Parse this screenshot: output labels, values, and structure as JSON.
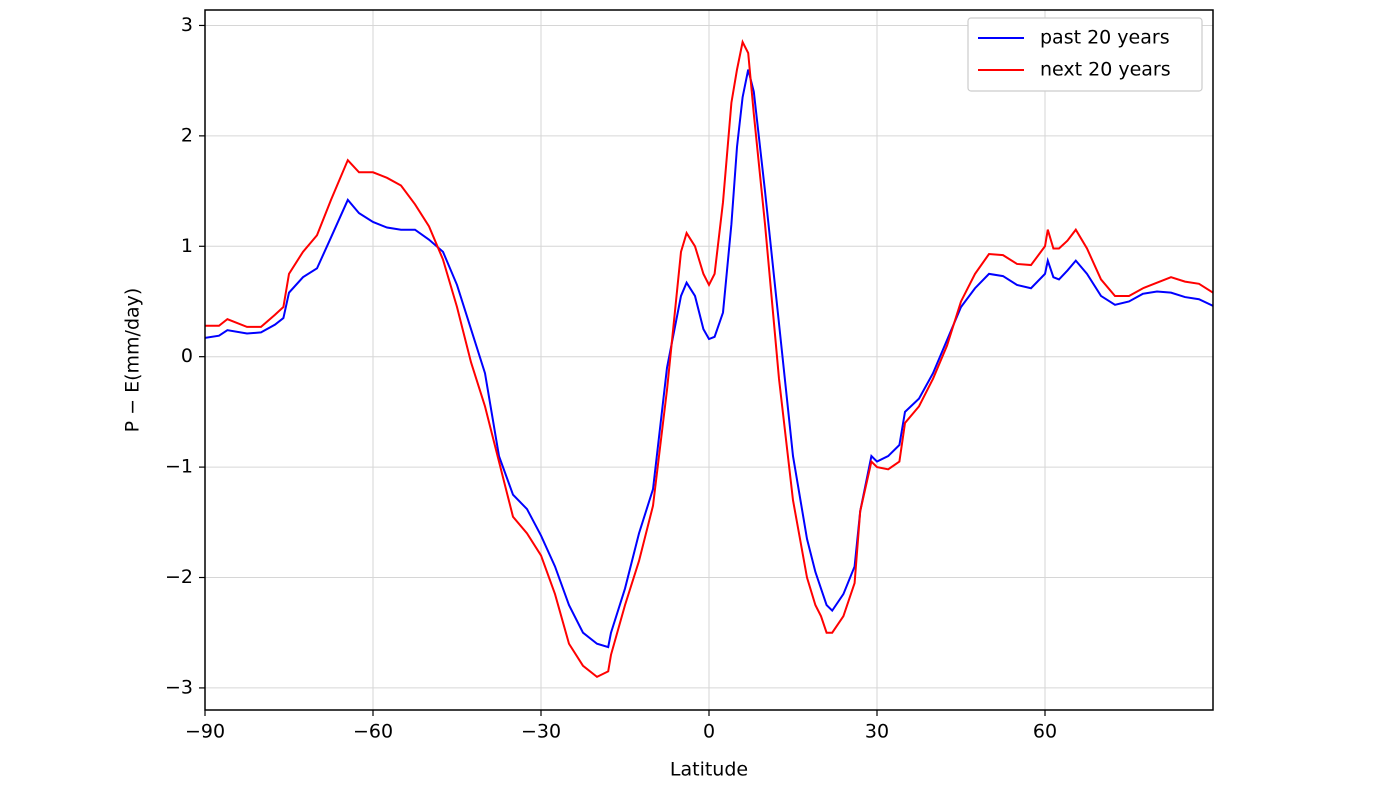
{
  "chart_data": {
    "type": "line",
    "x_label": "Latitude",
    "y_label": "P − E(mm/day)",
    "x": [
      -90,
      -87.5,
      -86,
      -82.5,
      -80,
      -77.5,
      -76,
      -75,
      -72.5,
      -70,
      -67.5,
      -64.5,
      -62.5,
      -60,
      -57.5,
      -55,
      -52.5,
      -50,
      -47.5,
      -45,
      -42.5,
      -40,
      -37.5,
      -35,
      -32.5,
      -30,
      -27.5,
      -25,
      -22.5,
      -20,
      -18,
      -17.5,
      -15,
      -12.5,
      -10,
      -7.5,
      -5,
      -4,
      -2.5,
      -1,
      0,
      1,
      2.5,
      4,
      5,
      6,
      7,
      8,
      10,
      12.5,
      15,
      17.5,
      19,
      20,
      21,
      22,
      24,
      26,
      27,
      29,
      30,
      32,
      34,
      35,
      37.5,
      40,
      42.5,
      45,
      47.5,
      50,
      52.5,
      55,
      57.5,
      60,
      60.5,
      61.5,
      62.5,
      64,
      65.5,
      67.5,
      70,
      72.5,
      75,
      77.5,
      80,
      82.5,
      85,
      87.5,
      90
    ],
    "series": [
      {
        "name": "past 20 years",
        "color": "#0000ff",
        "values": [
          0.17,
          0.19,
          0.24,
          0.21,
          0.22,
          0.29,
          0.35,
          0.58,
          0.72,
          0.8,
          1.08,
          1.42,
          1.3,
          1.22,
          1.17,
          1.15,
          1.15,
          1.06,
          0.95,
          0.65,
          0.25,
          -0.15,
          -0.9,
          -1.25,
          -1.38,
          -1.62,
          -1.9,
          -2.25,
          -2.5,
          -2.6,
          -2.63,
          -2.5,
          -2.1,
          -1.6,
          -1.2,
          -0.1,
          0.55,
          0.67,
          0.55,
          0.25,
          0.16,
          0.18,
          0.4,
          1.2,
          1.9,
          2.35,
          2.6,
          2.4,
          1.5,
          0.3,
          -0.9,
          -1.65,
          -1.95,
          -2.1,
          -2.25,
          -2.3,
          -2.15,
          -1.9,
          -1.4,
          -0.9,
          -0.95,
          -0.9,
          -0.8,
          -0.5,
          -0.38,
          -0.15,
          0.15,
          0.45,
          0.62,
          0.75,
          0.73,
          0.65,
          0.62,
          0.75,
          0.87,
          0.72,
          0.7,
          0.78,
          0.87,
          0.75,
          0.55,
          0.47,
          0.5,
          0.57,
          0.59,
          0.58,
          0.54,
          0.52,
          0.46
        ]
      },
      {
        "name": "next 20 years",
        "color": "#ff0000",
        "values": [
          0.28,
          0.28,
          0.34,
          0.27,
          0.27,
          0.38,
          0.45,
          0.75,
          0.95,
          1.1,
          1.42,
          1.78,
          1.67,
          1.67,
          1.62,
          1.55,
          1.38,
          1.18,
          0.88,
          0.45,
          -0.05,
          -0.45,
          -0.95,
          -1.45,
          -1.6,
          -1.8,
          -2.15,
          -2.6,
          -2.8,
          -2.9,
          -2.85,
          -2.7,
          -2.25,
          -1.85,
          -1.35,
          -0.3,
          0.95,
          1.12,
          1.0,
          0.75,
          0.65,
          0.75,
          1.4,
          2.3,
          2.6,
          2.85,
          2.75,
          2.2,
          1.2,
          -0.2,
          -1.3,
          -2.0,
          -2.25,
          -2.35,
          -2.5,
          -2.5,
          -2.35,
          -2.05,
          -1.4,
          -0.95,
          -1.0,
          -1.02,
          -0.95,
          -0.6,
          -0.45,
          -0.2,
          0.1,
          0.5,
          0.75,
          0.93,
          0.92,
          0.84,
          0.83,
          1.0,
          1.15,
          0.98,
          0.98,
          1.05,
          1.15,
          0.98,
          0.7,
          0.55,
          0.55,
          0.62,
          0.67,
          0.72,
          0.68,
          0.66,
          0.58
        ]
      }
    ],
    "xlim": [
      -90,
      90
    ],
    "ylim": [
      -3.2,
      3.14
    ],
    "xticks": [
      {
        "value": -90,
        "label": "−90"
      },
      {
        "value": -60,
        "label": "−60"
      },
      {
        "value": -30,
        "label": "−30"
      },
      0,
      30,
      60
    ],
    "yticks": [
      {
        "value": -3,
        "label": "−3"
      },
      {
        "value": -2,
        "label": "−2"
      },
      {
        "value": -1,
        "label": "−1"
      },
      0,
      1,
      2,
      3
    ],
    "grid": true,
    "legend": "upper right"
  }
}
